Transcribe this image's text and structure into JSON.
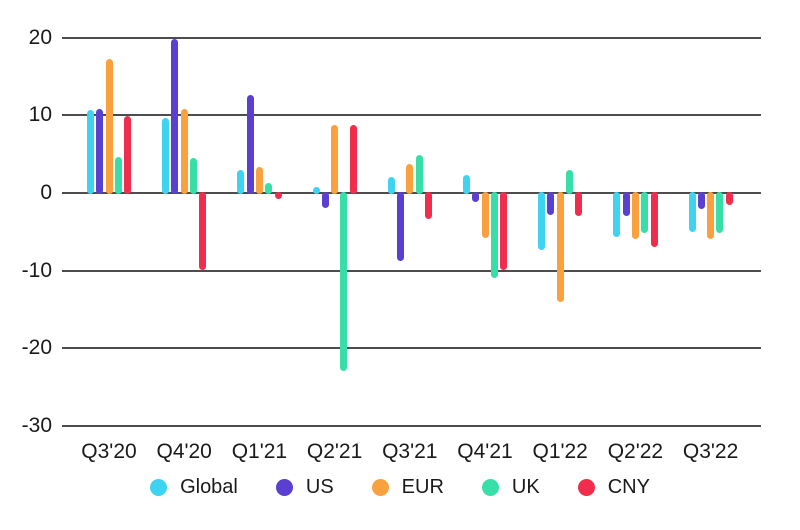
{
  "chart_data": {
    "type": "bar",
    "title": "",
    "xlabel": "",
    "ylabel": "",
    "categories": [
      "Q3'20",
      "Q4'20",
      "Q1'21",
      "Q2'21",
      "Q3'21",
      "Q4'21",
      "Q1'22",
      "Q2'22",
      "Q3'22"
    ],
    "series": [
      {
        "name": "Global",
        "color": "#3FD3F2",
        "values": [
          10.7,
          9.7,
          2.9,
          0.8,
          2.1,
          2.3,
          -7.3,
          -5.7,
          -5.0
        ]
      },
      {
        "name": "US",
        "color": "#5A3FD0",
        "values": [
          10.8,
          19.9,
          12.6,
          -1.9,
          -8.7,
          -1.2,
          -2.8,
          -2.9,
          -2.0
        ]
      },
      {
        "name": "EUR",
        "color": "#F8A13E",
        "values": [
          17.3,
          10.8,
          3.4,
          8.8,
          3.8,
          -5.8,
          -14.0,
          -5.9,
          -5.9
        ]
      },
      {
        "name": "UK",
        "color": "#38DEA8",
        "values": [
          4.6,
          4.5,
          1.3,
          -22.9,
          4.9,
          -11.0,
          3.0,
          -5.1,
          -5.2
        ]
      },
      {
        "name": "CNY",
        "color": "#F02D4D",
        "values": [
          9.9,
          -9.9,
          -0.8,
          8.7,
          -3.3,
          -9.9,
          -2.9,
          -6.9,
          -1.6
        ]
      }
    ],
    "yticks": [
      20,
      10,
      0,
      -10,
      -20,
      -30
    ],
    "ylim": [
      -30,
      23
    ],
    "grid": true,
    "legend_position": "bottom",
    "background": "#ffffff",
    "grid_color": "#4d4d4d",
    "text_color": "#1a1a1a"
  }
}
